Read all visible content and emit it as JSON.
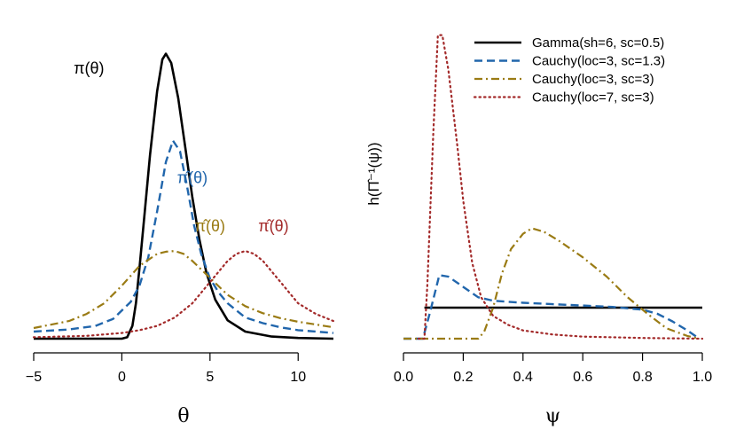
{
  "colors": {
    "black": "#000000",
    "blue": "#2166ac",
    "gold": "#9a7b14",
    "red": "#a32a2a"
  },
  "chart_data": [
    {
      "type": "line",
      "title": "",
      "xlabel": "θ",
      "ylabel": "",
      "xlim": [
        -5,
        12
      ],
      "ylim": [
        0,
        0.41
      ],
      "x_ticks": [
        -5,
        0,
        5,
        10
      ],
      "x_tick_labels": [
        "−5",
        "0",
        "5",
        "10"
      ],
      "annotations": [
        {
          "text": "π(θ)",
          "x": -1.0,
          "y": 0.375,
          "color": "black"
        },
        {
          "text": "π̂(θ)",
          "x": 4.0,
          "y": 0.22,
          "color": "blue"
        },
        {
          "text": "π̂(θ)",
          "x": 5.0,
          "y": 0.152,
          "color": "gold"
        },
        {
          "text": "π̂(θ)",
          "x": 8.6,
          "y": 0.152,
          "color": "red"
        }
      ],
      "series": [
        {
          "style": "solid",
          "color": "black",
          "x": [
            -5,
            0,
            0.3,
            0.6,
            0.8,
            1.0,
            1.3,
            1.6,
            2.0,
            2.3,
            2.5,
            2.8,
            3.2,
            3.6,
            4.0,
            4.4,
            4.8,
            5.3,
            6.0,
            7.0,
            8.5,
            10,
            12
          ],
          "y": [
            0.0,
            0.0,
            0.002,
            0.018,
            0.05,
            0.1,
            0.18,
            0.26,
            0.35,
            0.395,
            0.403,
            0.39,
            0.34,
            0.27,
            0.2,
            0.14,
            0.093,
            0.055,
            0.026,
            0.01,
            0.003,
            0.001,
            0.0
          ]
        },
        {
          "style": "dashed",
          "color": "blue",
          "x": [
            -5,
            -3,
            -1.5,
            -0.5,
            0.5,
            1.0,
            1.5,
            2.0,
            2.5,
            2.9,
            3.3,
            3.7,
            4.1,
            4.5,
            5.0,
            5.5,
            6.0,
            7.0,
            8.0,
            9.0,
            10,
            11,
            12
          ],
          "y": [
            0.01,
            0.013,
            0.018,
            0.028,
            0.052,
            0.075,
            0.115,
            0.18,
            0.25,
            0.28,
            0.265,
            0.215,
            0.16,
            0.12,
            0.085,
            0.065,
            0.05,
            0.03,
            0.022,
            0.016,
            0.012,
            0.01,
            0.008
          ]
        },
        {
          "style": "dashdot",
          "color": "gold",
          "x": [
            -5,
            -3,
            -2,
            -1,
            0,
            1,
            2,
            2.5,
            3.0,
            3.5,
            4.0,
            5.0,
            6.0,
            7.0,
            8.0,
            9.0,
            10,
            11,
            12
          ],
          "y": [
            0.015,
            0.025,
            0.035,
            0.05,
            0.075,
            0.103,
            0.12,
            0.123,
            0.124,
            0.12,
            0.11,
            0.086,
            0.062,
            0.046,
            0.036,
            0.029,
            0.024,
            0.02,
            0.016
          ]
        },
        {
          "style": "dotted",
          "color": "red",
          "x": [
            -5,
            -2,
            0,
            1,
            2,
            3,
            4,
            5,
            6,
            6.5,
            7.0,
            7.5,
            8,
            9,
            10,
            11,
            12
          ],
          "y": [
            0.002,
            0.004,
            0.008,
            0.012,
            0.018,
            0.03,
            0.05,
            0.08,
            0.11,
            0.12,
            0.124,
            0.12,
            0.11,
            0.08,
            0.05,
            0.035,
            0.025
          ]
        }
      ]
    },
    {
      "type": "line",
      "title": "",
      "xlabel": "ψ",
      "ylabel": "h(Π̂⁻¹(ψ))",
      "xlim": [
        0,
        1
      ],
      "ylim": [
        0,
        4.6
      ],
      "x_ticks": [
        0.0,
        0.2,
        0.4,
        0.6,
        0.8,
        1.0
      ],
      "x_tick_labels": [
        "0.0",
        "0.2",
        "0.4",
        "0.6",
        "0.8",
        "1.0"
      ],
      "legend": {
        "position": "top-right",
        "entries": [
          {
            "label": "Gamma(sh=6, sc=0.5)",
            "style": "solid",
            "color": "black"
          },
          {
            "label": "Cauchy(loc=3, sc=1.3)",
            "style": "dashed",
            "color": "blue"
          },
          {
            "label": "Cauchy(loc=3, sc=3)",
            "style": "dashdot",
            "color": "gold"
          },
          {
            "label": "Cauchy(loc=7, sc=3)",
            "style": "dotted",
            "color": "red"
          }
        ]
      },
      "series": [
        {
          "style": "solid",
          "color": "black",
          "x": [
            0.07,
            1.0
          ],
          "y": [
            0.45,
            0.45
          ]
        },
        {
          "style": "dashed",
          "color": "blue",
          "x": [
            0.0,
            0.065,
            0.09,
            0.12,
            0.15,
            0.2,
            0.25,
            0.3,
            0.4,
            0.5,
            0.6,
            0.7,
            0.8,
            0.85,
            0.9,
            0.95,
            0.98
          ],
          "y": [
            0.0,
            0.0,
            0.4,
            0.92,
            0.9,
            0.75,
            0.6,
            0.55,
            0.52,
            0.5,
            0.48,
            0.46,
            0.42,
            0.36,
            0.25,
            0.12,
            0.03
          ]
        },
        {
          "style": "dashdot",
          "color": "gold",
          "x": [
            0.0,
            0.25,
            0.27,
            0.3,
            0.33,
            0.36,
            0.4,
            0.43,
            0.47,
            0.52,
            0.6,
            0.68,
            0.75,
            0.82,
            0.88,
            0.95,
            0.99
          ],
          "y": [
            0.0,
            0.0,
            0.1,
            0.45,
            0.95,
            1.3,
            1.52,
            1.6,
            1.55,
            1.42,
            1.18,
            0.9,
            0.6,
            0.35,
            0.15,
            0.04,
            0.0
          ]
        },
        {
          "style": "dotted",
          "color": "red",
          "x": [
            0.05,
            0.07,
            0.08,
            0.1,
            0.115,
            0.13,
            0.15,
            0.18,
            0.2,
            0.23,
            0.26,
            0.3,
            0.35,
            0.4,
            0.5,
            0.6,
            0.7,
            0.8,
            0.9,
            1.0
          ],
          "y": [
            0.0,
            0.0,
            0.8,
            3.0,
            4.4,
            4.4,
            3.9,
            2.8,
            2.0,
            1.1,
            0.6,
            0.33,
            0.2,
            0.12,
            0.06,
            0.03,
            0.02,
            0.01,
            0.005,
            0.0
          ]
        }
      ]
    }
  ]
}
